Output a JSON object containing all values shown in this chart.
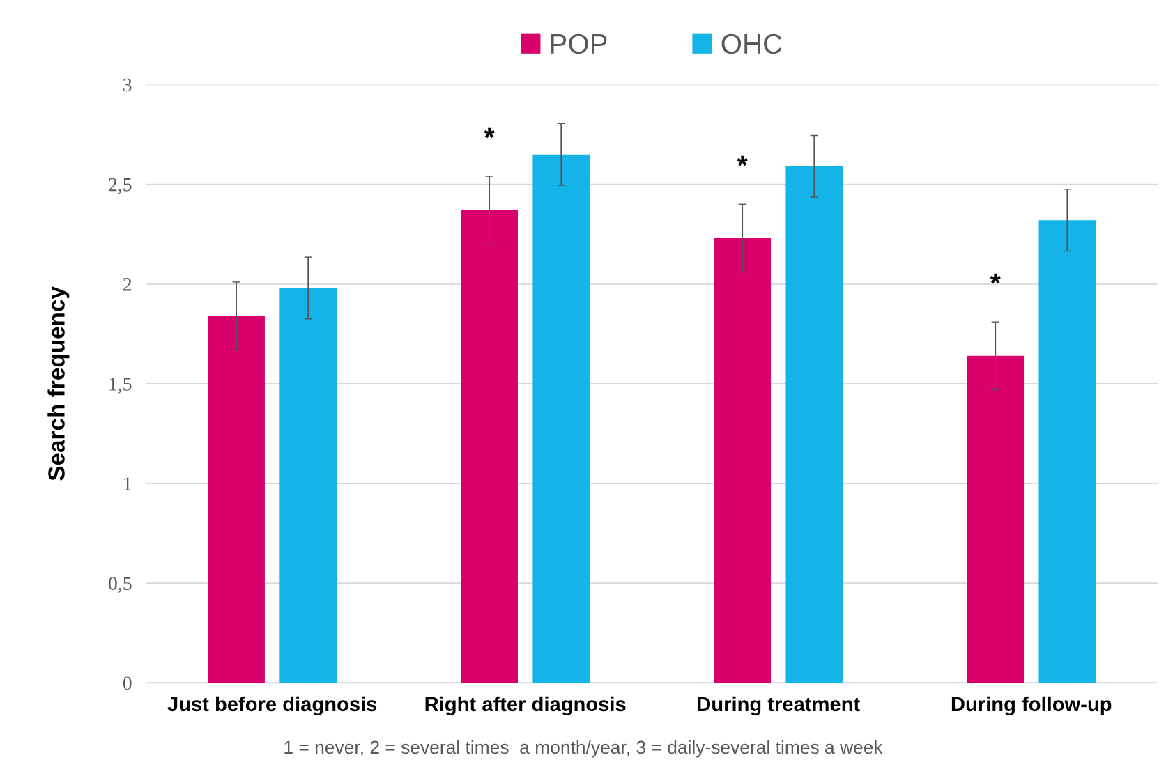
{
  "chart_data": {
    "type": "bar",
    "ylabel": "Search frequency",
    "categories": [
      "Just before diagnosis",
      "Right after diagnosis",
      "During treatment",
      "During follow-up"
    ],
    "series": [
      {
        "name": "POP",
        "color": "#d9006c",
        "values": [
          1.84,
          2.37,
          2.23,
          1.64
        ],
        "errors": [
          0.17,
          0.17,
          0.17,
          0.17
        ],
        "value_labels": [
          null,
          "*",
          "*",
          "*"
        ]
      },
      {
        "name": "OHC",
        "color": "#14b4e8",
        "values": [
          1.98,
          2.65,
          2.59,
          2.32
        ],
        "errors": [
          0.155,
          0.155,
          0.155,
          0.155
        ]
      }
    ],
    "ylim": [
      0,
      3
    ],
    "yticks": [
      0,
      {
        "value": 0.5,
        "label": "0,5"
      },
      1,
      {
        "value": 1.5,
        "label": "1,5"
      },
      2,
      {
        "value": 2.5,
        "label": "2,5"
      },
      3
    ],
    "grid": "y",
    "legend": "top",
    "annotations": [
      "1 = never, 2 = several times  a month/year, 3 = daily-several times a week"
    ]
  }
}
